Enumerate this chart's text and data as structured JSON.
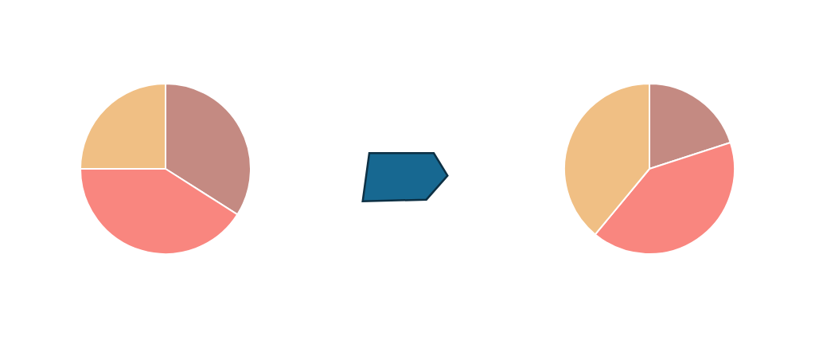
{
  "chart_data": [
    {
      "type": "pie",
      "categories": [
        null,
        null,
        null
      ],
      "values": [
        34,
        41,
        25
      ],
      "colors": [
        "#c48a82",
        "#f9867f",
        "#f0bf84"
      ]
    },
    {
      "type": "pie",
      "categories": [
        null,
        null,
        null
      ],
      "values": [
        20,
        41,
        39
      ],
      "colors": [
        "#c48a82",
        "#f9867f",
        "#f0bf84"
      ]
    }
  ]
}
